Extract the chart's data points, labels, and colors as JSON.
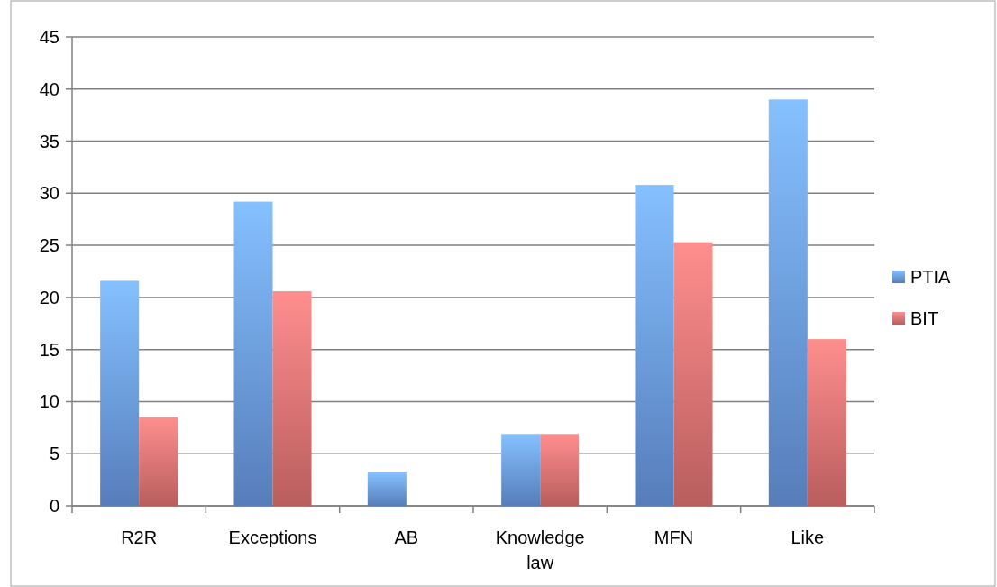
{
  "chart_data": {
    "type": "bar",
    "categories": [
      "R2R",
      "Exceptions",
      "AB",
      "Knowledge law",
      "MFN",
      "Like"
    ],
    "series": [
      {
        "name": "PTIA",
        "color": "#6b9be6",
        "values": [
          21.6,
          29.2,
          3.2,
          6.9,
          30.8,
          39.0
        ]
      },
      {
        "name": "BIT",
        "color": "#e57373",
        "values": [
          8.5,
          20.6,
          0,
          6.9,
          25.3,
          16.0
        ]
      }
    ],
    "ylim": [
      0,
      45
    ],
    "yticks": [
      0,
      5,
      10,
      15,
      20,
      25,
      30,
      35,
      40,
      45
    ],
    "grid": "y",
    "legend": "right"
  }
}
